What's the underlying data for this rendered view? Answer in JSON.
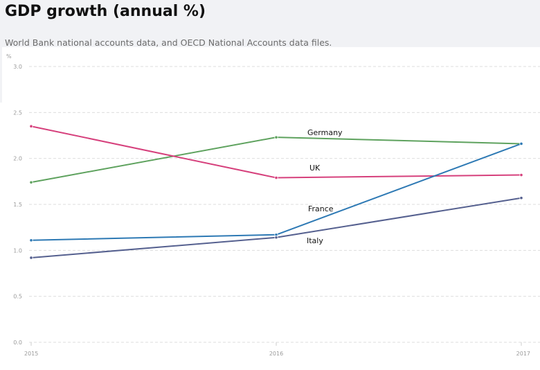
{
  "header": {
    "title": "GDP growth (annual %)",
    "subtitle": "World Bank national accounts data, and OECD National Accounts data files."
  },
  "chart_data": {
    "type": "line",
    "title": "GDP growth (annual %)",
    "subtitle": "World Bank national accounts data, and OECD National Accounts data files.",
    "ylabel": "%",
    "xlabel": "",
    "x": [
      "2015",
      "2016",
      "2017"
    ],
    "ylim": [
      0,
      3.0
    ],
    "y_ticks": [
      "0.0",
      "0.5",
      "1.0",
      "1.5",
      "2.0",
      "2.5",
      "3.0"
    ],
    "grid": true,
    "series": [
      {
        "name": "Germany",
        "color": "#5ea25e",
        "values": [
          1.74,
          2.23,
          2.16
        ]
      },
      {
        "name": "UK",
        "color": "#d6407c",
        "values": [
          2.35,
          1.79,
          1.82
        ]
      },
      {
        "name": "France",
        "color": "#2d79b4",
        "values": [
          1.11,
          1.17,
          2.16
        ]
      },
      {
        "name": "Italy",
        "color": "#55608f",
        "values": [
          0.92,
          1.14,
          1.57
        ]
      }
    ]
  }
}
